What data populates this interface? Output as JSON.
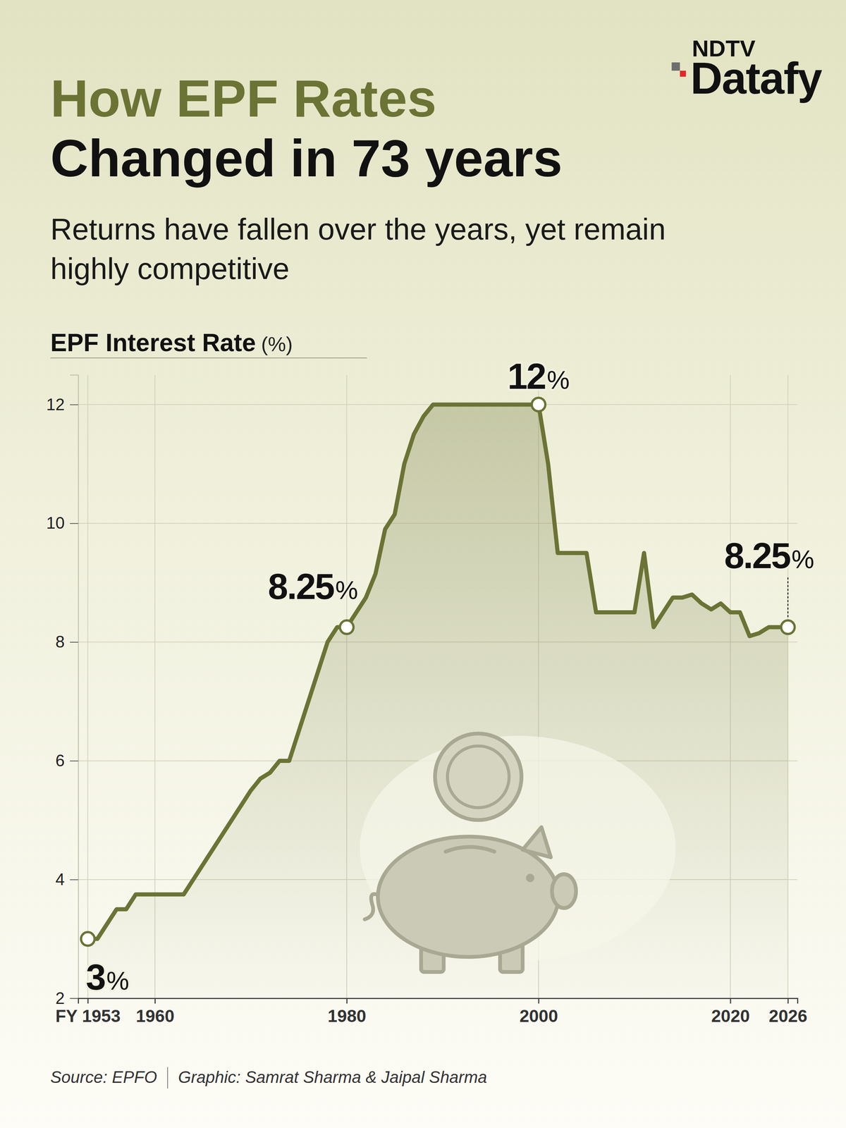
{
  "logo": {
    "brand": "NDTV",
    "name": "Datafy"
  },
  "chart_data": {
    "type": "line",
    "title": [
      "How EPF Rates",
      "Changed in 73 years"
    ],
    "subtitle": "Returns have fallen over the years, yet remain highly competitive",
    "y_label": "EPF Interest Rate",
    "y_unit": "(%)",
    "x": [
      1953,
      1954,
      1956,
      1957,
      1958,
      1963,
      1970,
      1971,
      1972,
      1973,
      1974,
      1978,
      1979,
      1980,
      1981,
      1982,
      1983,
      1984,
      1985,
      1986,
      1987,
      1988,
      1989,
      2000,
      2001,
      2002,
      2005,
      2006,
      2010,
      2011,
      2012,
      2014,
      2015,
      2016,
      2017,
      2018,
      2019,
      2020,
      2021,
      2022,
      2023,
      2024,
      2025,
      2026
    ],
    "series": [
      {
        "color": "#6b7335",
        "values": [
          3,
          3,
          3.5,
          3.5,
          3.75,
          3.75,
          5.5,
          5.7,
          5.8,
          6,
          6,
          8,
          8.25,
          8.25,
          8.5,
          8.75,
          9.15,
          9.9,
          10.15,
          11,
          11.5,
          11.8,
          12,
          12,
          11,
          9.5,
          9.5,
          8.5,
          8.5,
          9.5,
          8.25,
          8.75,
          8.75,
          8.8,
          8.65,
          8.55,
          8.65,
          8.5,
          8.5,
          8.1,
          8.15,
          8.25,
          8.25,
          8.25
        ]
      }
    ],
    "xlim": [
      1952,
      2027
    ],
    "xticks": [
      {
        "value": 1953,
        "label": "FY 1953"
      },
      1960,
      1980,
      2000,
      2020,
      2026
    ],
    "ylim": [
      2,
      12.5
    ],
    "yticks": [
      2,
      4,
      6,
      8,
      10,
      12
    ],
    "grid": true,
    "annotations": [
      {
        "x": 1953,
        "value": 3,
        "label": "3%"
      },
      {
        "x": 1980,
        "value": 8.25,
        "label": "8.25%"
      },
      {
        "x": 2000,
        "value": 12,
        "label": "12%"
      },
      {
        "x": 2026,
        "value": 8.25,
        "label": "8.25%"
      }
    ],
    "source": "Source: EPFO",
    "credit": "Graphic: Samrat Sharma & Jaipal Sharma"
  }
}
